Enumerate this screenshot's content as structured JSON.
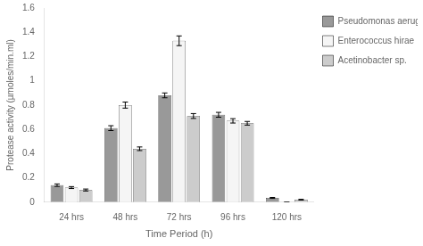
{
  "chart_data": {
    "type": "bar",
    "categories": [
      "24 hrs",
      "48 hrs",
      "72 hrs",
      "96 hrs",
      "120 hrs"
    ],
    "series": [
      {
        "name": "Pseudomonas aeruginosa",
        "color": "#999999",
        "values": [
          0.14,
          0.61,
          0.88,
          0.72,
          0.035
        ],
        "errors": [
          0.01,
          0.02,
          0.02,
          0.02,
          0.004
        ]
      },
      {
        "name": "Enterococcus hirae",
        "color": "#f5f5f5",
        "values": [
          0.12,
          0.8,
          1.33,
          0.67,
          0.0
        ],
        "errors": [
          0.008,
          0.025,
          0.04,
          0.018,
          0.0
        ]
      },
      {
        "name": "Acetinobacter sp.",
        "color": "#cccccc",
        "values": [
          0.1,
          0.44,
          0.71,
          0.65,
          0.02
        ],
        "errors": [
          0.008,
          0.015,
          0.02,
          0.015,
          0.003
        ]
      }
    ],
    "xlabel": "Time Period (h)",
    "ylabel": "Protease activity (µmoles/min.ml)",
    "ylim": [
      0,
      1.6
    ],
    "yticks": [
      0,
      0.2,
      0.4,
      0.6,
      0.8,
      1,
      1.2,
      1.4,
      1.6
    ],
    "grid": false,
    "legend": "right"
  }
}
